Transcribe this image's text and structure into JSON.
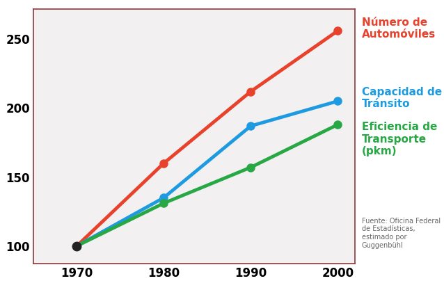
{
  "chart_data": {
    "type": "line",
    "x": [
      1970,
      1980,
      1990,
      2000
    ],
    "series": [
      {
        "name": "Número de Automóviles",
        "color": "#e8412c",
        "values": [
          100,
          160,
          212,
          256
        ],
        "marker": "circle"
      },
      {
        "name": "Capacidad de Tránsito",
        "color": "#1e9be0",
        "values": [
          100,
          135,
          187,
          205
        ],
        "marker": "circle"
      },
      {
        "name": "Eficiencia de Transporte (pkm)",
        "color": "#27a844",
        "values": [
          100,
          131,
          157,
          188
        ],
        "marker": "circle"
      }
    ],
    "xlim": [
      1965,
      2002
    ],
    "xticks": [
      1970,
      1980,
      1990,
      2000
    ],
    "ylim": [
      87,
      272
    ],
    "yticks": [
      100,
      150,
      200,
      250
    ],
    "grid": false,
    "source": "Fuente: Oficina Federal de Estadísticas, estimado por Guggenbühl"
  }
}
